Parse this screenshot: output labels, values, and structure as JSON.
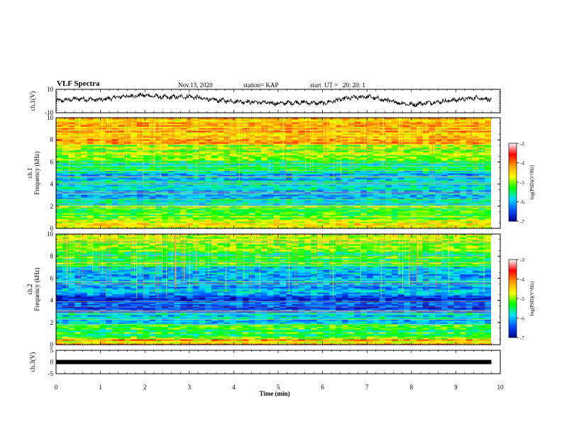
{
  "header": {
    "title": "VLF Spectra",
    "date": "Nov.13, 2020",
    "station": "station= KAP",
    "start": "start  UT =   20: 20: 1"
  },
  "colorbar": {
    "label": "log(PSD)(V²/Hz)",
    "ticks": [
      "-3",
      "-4",
      "-5",
      "-6",
      "-7"
    ],
    "colors": [
      "#ffffff",
      "#ff0000",
      "#ff9900",
      "#ffff00",
      "#00ff00",
      "#00e0ff",
      "#0050ff",
      "#00008b"
    ]
  },
  "chart_data": [
    {
      "type": "line",
      "ylabel": "ch.1(V)",
      "ylim": [
        -10,
        10
      ],
      "yticks": [
        "10",
        "-10"
      ],
      "xlim": [
        0,
        10
      ],
      "approx_range": [
        -6,
        7
      ],
      "series": [
        {
          "x": [
            0,
            0.5,
            1,
            1.5,
            2,
            2.5,
            3,
            3.5,
            4,
            4.5,
            5,
            5.5,
            6,
            6.5,
            7,
            7.5,
            8,
            8.5,
            9,
            9.5,
            9.8
          ],
          "values": [
            0,
            2,
            1,
            4,
            5,
            3,
            4,
            1,
            0,
            -1,
            -2,
            -1,
            -2,
            2,
            4,
            0,
            -3,
            -1,
            1,
            3,
            1
          ]
        }
      ]
    },
    {
      "type": "heatmap",
      "ylabel_lines": [
        "ch.1",
        "Frequency (kHz)"
      ],
      "ylim": [
        0,
        10
      ],
      "yticks": [
        "0",
        "2",
        "4",
        "6",
        "8",
        "10"
      ],
      "xlim": [
        0,
        10
      ],
      "value_range": [
        -7,
        -3
      ],
      "bands_khz": [
        {
          "from": 0.0,
          "to": 0.8,
          "level": -4.3
        },
        {
          "from": 0.8,
          "to": 2.0,
          "level": -4.8
        },
        {
          "from": 2.0,
          "to": 3.0,
          "level": -5.5
        },
        {
          "from": 3.0,
          "to": 5.2,
          "level": -5.7
        },
        {
          "from": 5.2,
          "to": 6.2,
          "level": -5.2
        },
        {
          "from": 6.2,
          "to": 7.6,
          "level": -4.6
        },
        {
          "from": 7.6,
          "to": 10.0,
          "level": -3.9
        }
      ]
    },
    {
      "type": "heatmap",
      "ylabel_lines": [
        "ch.2",
        "Frequency (kHz)"
      ],
      "ylim": [
        0,
        10
      ],
      "yticks": [
        "0",
        "2",
        "4",
        "6",
        "8",
        "10"
      ],
      "xlim": [
        0,
        10
      ],
      "value_range": [
        -7,
        -3
      ],
      "bands_khz": [
        {
          "from": 0.0,
          "to": 0.5,
          "level": -3.9
        },
        {
          "from": 0.5,
          "to": 1.8,
          "level": -5.0
        },
        {
          "from": 1.8,
          "to": 3.0,
          "level": -5.6
        },
        {
          "from": 3.0,
          "to": 4.5,
          "level": -6.4
        },
        {
          "from": 4.5,
          "to": 7.0,
          "level": -5.9
        },
        {
          "from": 7.0,
          "to": 8.5,
          "level": -5.0
        },
        {
          "from": 8.5,
          "to": 10.0,
          "level": -4.6
        }
      ]
    },
    {
      "type": "line",
      "ylabel": "ch.3(V)",
      "ylim": [
        -5,
        5
      ],
      "yticks": [
        "5",
        "0",
        "-5"
      ],
      "xlim": [
        0,
        10
      ],
      "series": [
        {
          "x": [
            0,
            9.8
          ],
          "values": [
            0,
            0
          ]
        }
      ]
    }
  ],
  "xaxis": {
    "label": "Time  (min)",
    "ticks": [
      "0",
      "1",
      "2",
      "3",
      "4",
      "5",
      "6",
      "7",
      "8",
      "9",
      "10"
    ]
  }
}
